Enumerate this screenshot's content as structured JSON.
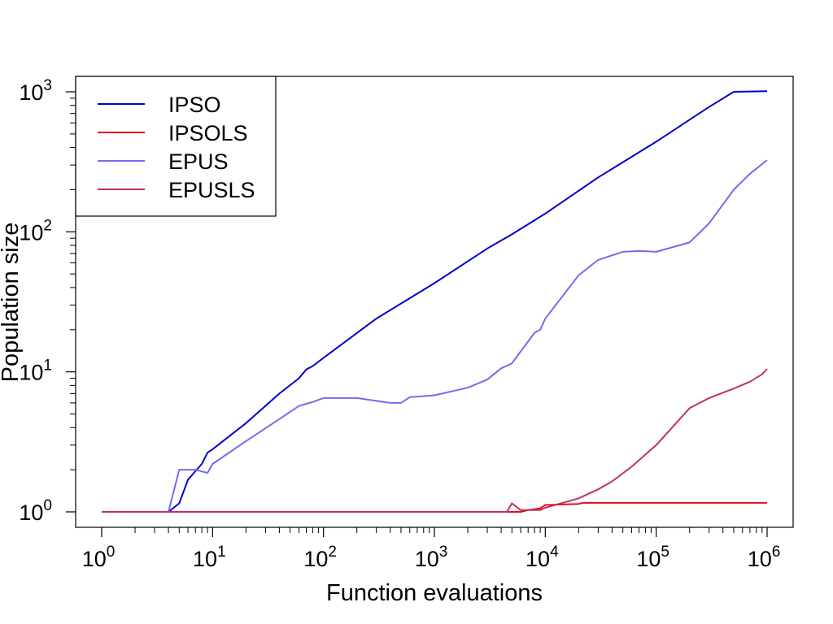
{
  "chart_data": {
    "type": "line",
    "title": "",
    "xlabel": "Function evaluations",
    "ylabel": "Population size",
    "xscale": "log",
    "yscale": "log",
    "xlim": [
      1,
      1000000
    ],
    "ylim": [
      1,
      1000
    ],
    "x_ticks": [
      {
        "value": 1,
        "base": "10",
        "exp": "0"
      },
      {
        "value": 10,
        "base": "10",
        "exp": "1"
      },
      {
        "value": 100,
        "base": "10",
        "exp": "2"
      },
      {
        "value": 1000,
        "base": "10",
        "exp": "3"
      },
      {
        "value": 10000,
        "base": "10",
        "exp": "4"
      },
      {
        "value": 100000,
        "base": "10",
        "exp": "5"
      },
      {
        "value": 1000000,
        "base": "10",
        "exp": "6"
      }
    ],
    "y_ticks": [
      {
        "value": 1,
        "base": "10",
        "exp": "0"
      },
      {
        "value": 10,
        "base": "10",
        "exp": "1"
      },
      {
        "value": 100,
        "base": "10",
        "exp": "2"
      },
      {
        "value": 1000,
        "base": "10",
        "exp": "3"
      }
    ],
    "grid": false,
    "legend_position": "top-left",
    "series": [
      {
        "name": "IPSO",
        "color": "#0000cd",
        "points": [
          [
            1,
            1
          ],
          [
            4,
            1
          ],
          [
            5,
            1.15
          ],
          [
            6,
            1.7
          ],
          [
            7,
            1.95
          ],
          [
            8,
            2.2
          ],
          [
            9,
            2.65
          ],
          [
            10,
            2.8
          ],
          [
            20,
            4.3
          ],
          [
            40,
            7
          ],
          [
            60,
            9
          ],
          [
            70,
            10.4
          ],
          [
            80,
            11
          ],
          [
            100,
            12.6
          ],
          [
            300,
            24
          ],
          [
            1000,
            43
          ],
          [
            3000,
            76
          ],
          [
            5000,
            96
          ],
          [
            10000,
            135
          ],
          [
            30000,
            245
          ],
          [
            100000,
            440
          ],
          [
            300000,
            780
          ],
          [
            500000,
            1000
          ],
          [
            1000000,
            1010
          ]
        ]
      },
      {
        "name": "IPSOLS",
        "color": "#e01010",
        "points": [
          [
            1,
            1
          ],
          [
            4000,
            1
          ],
          [
            5000,
            1
          ],
          [
            6000,
            1
          ],
          [
            7000,
            1.03
          ],
          [
            9000,
            1.06
          ],
          [
            10000,
            1.12
          ],
          [
            20000,
            1.14
          ],
          [
            22000,
            1.16
          ],
          [
            100000,
            1.16
          ],
          [
            1000000,
            1.16
          ]
        ]
      },
      {
        "name": "EPUS",
        "color": "#7b68ee",
        "points": [
          [
            1,
            1
          ],
          [
            4,
            1
          ],
          [
            5,
            2
          ],
          [
            7,
            2
          ],
          [
            9,
            1.9
          ],
          [
            10,
            2.2
          ],
          [
            20,
            3.2
          ],
          [
            40,
            4.6
          ],
          [
            60,
            5.7
          ],
          [
            80,
            6.1
          ],
          [
            100,
            6.5
          ],
          [
            200,
            6.5
          ],
          [
            300,
            6.2
          ],
          [
            400,
            6
          ],
          [
            500,
            6
          ],
          [
            600,
            6.6
          ],
          [
            800,
            6.7
          ],
          [
            1000,
            6.8
          ],
          [
            2000,
            7.7
          ],
          [
            3000,
            8.8
          ],
          [
            4000,
            10.6
          ],
          [
            5000,
            11.5
          ],
          [
            6000,
            14
          ],
          [
            8000,
            19
          ],
          [
            9000,
            20
          ],
          [
            10000,
            24
          ],
          [
            20000,
            49
          ],
          [
            30000,
            63
          ],
          [
            50000,
            72
          ],
          [
            70000,
            73
          ],
          [
            100000,
            72
          ],
          [
            200000,
            84
          ],
          [
            300000,
            115
          ],
          [
            500000,
            200
          ],
          [
            700000,
            260
          ],
          [
            1000000,
            325
          ]
        ]
      },
      {
        "name": "EPUSLS",
        "color": "#c0306a",
        "points": [
          [
            1,
            1
          ],
          [
            4500,
            1
          ],
          [
            5000,
            1.15
          ],
          [
            6000,
            1.03
          ],
          [
            8000,
            1.03
          ],
          [
            9000,
            1.03
          ],
          [
            10000,
            1.07
          ],
          [
            20000,
            1.25
          ],
          [
            30000,
            1.45
          ],
          [
            40000,
            1.65
          ],
          [
            60000,
            2.1
          ],
          [
            100000,
            3
          ],
          [
            200000,
            5.5
          ],
          [
            300000,
            6.5
          ],
          [
            500000,
            7.6
          ],
          [
            700000,
            8.5
          ],
          [
            900000,
            9.6
          ],
          [
            1000000,
            10.5
          ]
        ]
      }
    ]
  }
}
